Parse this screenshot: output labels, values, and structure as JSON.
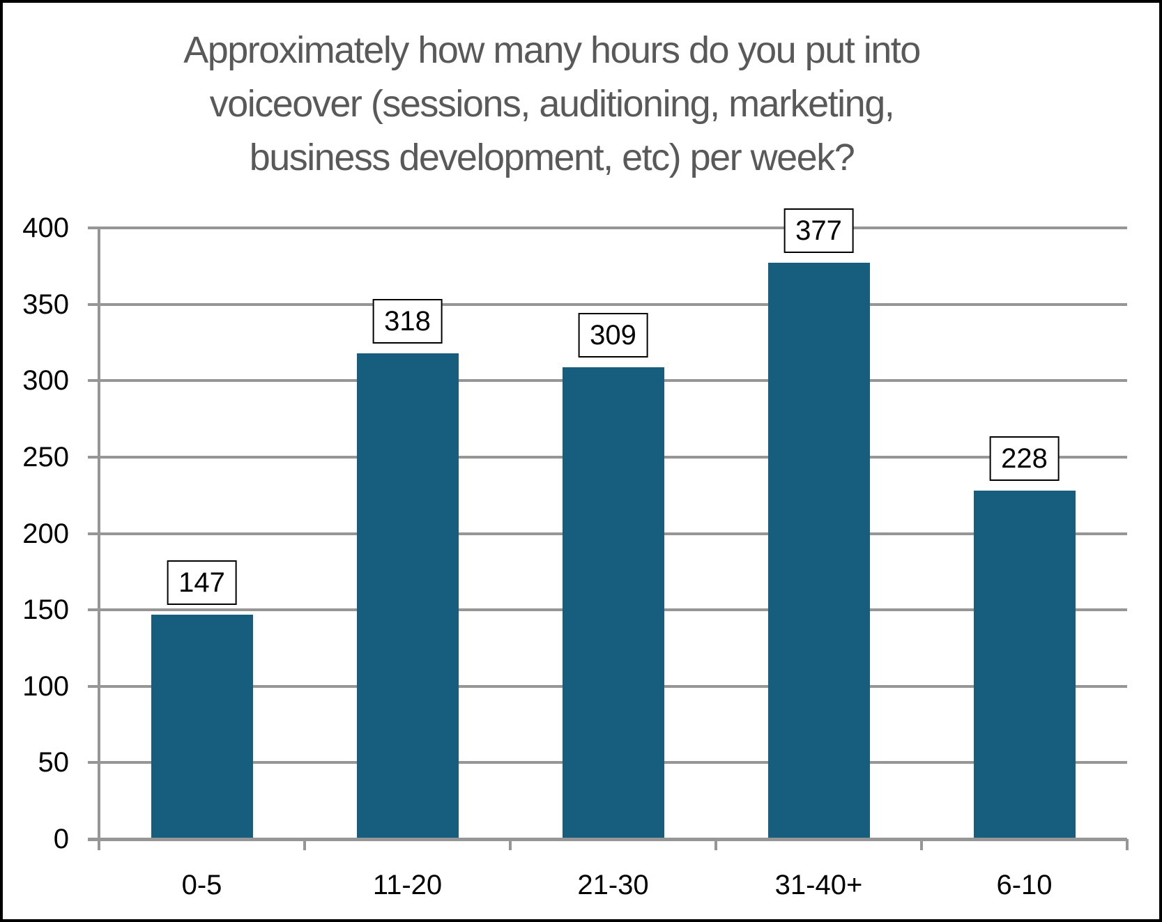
{
  "chart_data": {
    "type": "bar",
    "title": "Approximately how many hours do you put into voiceover (sessions, auditioning, marketing, business development, etc) per week?",
    "categories": [
      "0-5",
      "11-20",
      "21-30",
      "31-40+",
      "6-10"
    ],
    "values": [
      147,
      318,
      309,
      377,
      228
    ],
    "data_labels": [
      "147",
      "318",
      "309",
      "377",
      "228"
    ],
    "data_labels_boxed": true,
    "xlabel": "",
    "ylabel": "",
    "ylim": [
      0,
      400
    ],
    "ytick_step": 50,
    "yticks": [
      "0",
      "50",
      "100",
      "150",
      "200",
      "250",
      "300",
      "350",
      "400"
    ],
    "grid": true,
    "legend": false,
    "colors": {
      "bar": "#175E7E",
      "gridline": "#969696",
      "axis": "#969696",
      "title_text": "#595959",
      "tick_text": "#000000",
      "data_label_text": "#000000",
      "data_label_border": "#000000",
      "background": "#FFFFFF",
      "frame_border": "#000000"
    }
  }
}
